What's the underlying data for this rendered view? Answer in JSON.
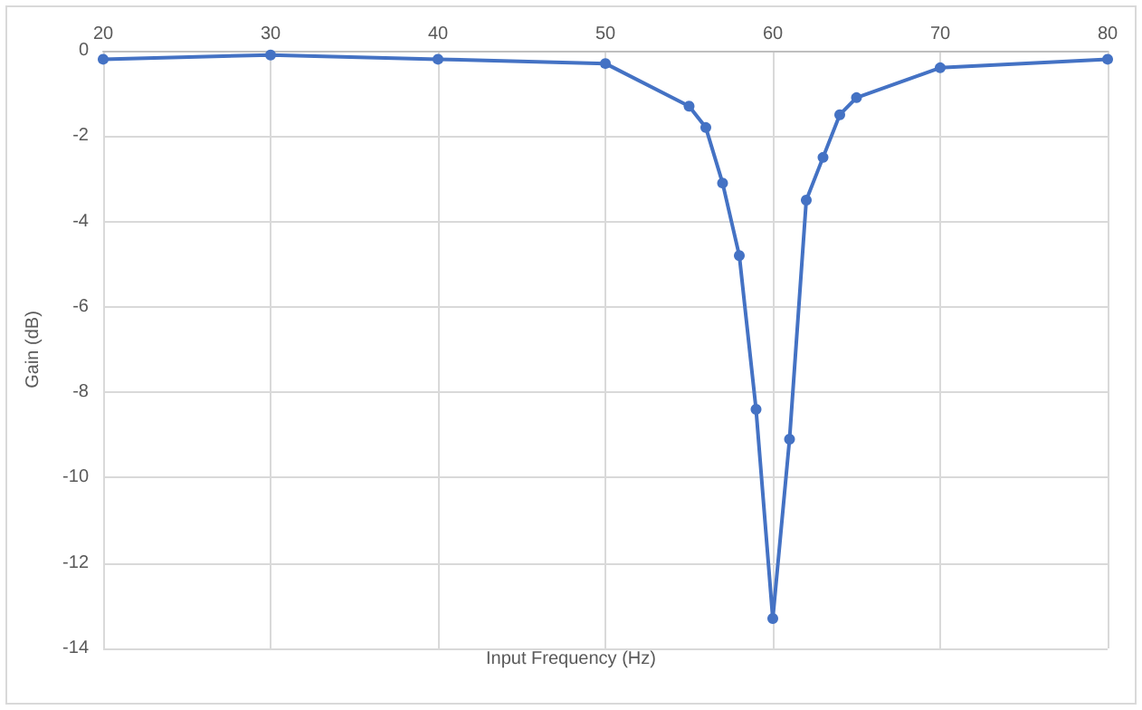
{
  "chart_data": {
    "type": "line",
    "xlabel": "Input Frequency (Hz)",
    "ylabel": "Gain (dB)",
    "x": [
      20,
      30,
      40,
      50,
      55,
      56,
      57,
      58,
      59,
      60,
      61,
      62,
      63,
      64,
      65,
      70,
      80
    ],
    "series": [
      {
        "color": "#4472c4",
        "values": [
          -0.2,
          -0.1,
          -0.2,
          -0.3,
          -1.3,
          -1.8,
          -3.1,
          -4.8,
          -8.4,
          -13.3,
          -9.1,
          -3.5,
          -2.5,
          -1.5,
          -1.1,
          -0.4,
          -0.2
        ]
      }
    ],
    "xlim": [
      20,
      80
    ],
    "xticks": [
      20,
      30,
      40,
      50,
      60,
      70,
      80
    ],
    "ylim": [
      -14,
      0
    ],
    "yticks": [
      0,
      -2,
      -4,
      -6,
      -8,
      -10,
      -12,
      -14
    ],
    "grid": true,
    "marker": "circle",
    "line_style": "solid"
  }
}
